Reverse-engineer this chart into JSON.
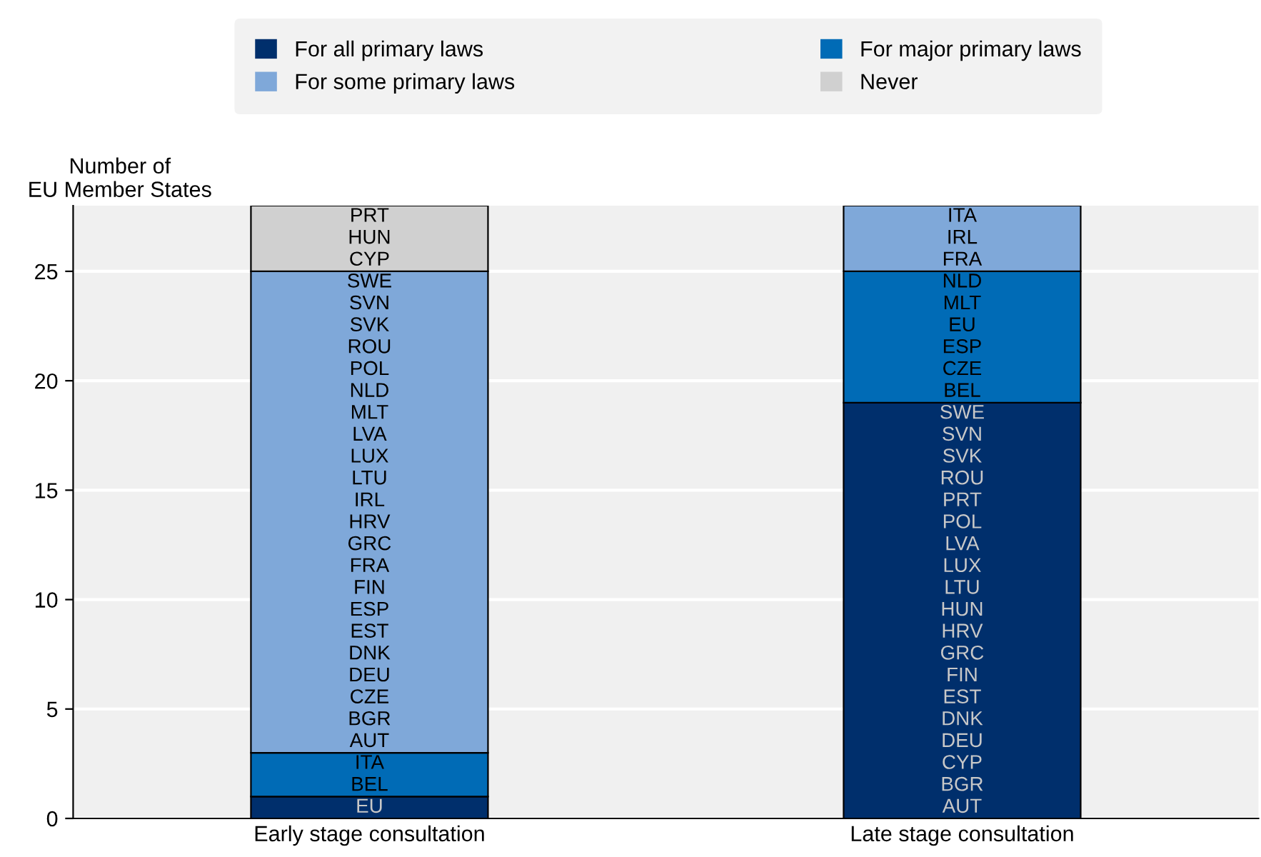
{
  "chart_data": {
    "type": "bar",
    "stacked": true,
    "ylabel": "Number of\nEU Member States",
    "categories": [
      "Early stage consultation",
      "Late stage consultation"
    ],
    "series": [
      {
        "name": "For all primary laws",
        "color": "#002f6c",
        "values": [
          1,
          19
        ]
      },
      {
        "name": "For major primary laws",
        "color": "#006bb6",
        "values": [
          2,
          6
        ]
      },
      {
        "name": "For some primary laws",
        "color": "#7fa8d9",
        "values": [
          22,
          3
        ]
      },
      {
        "name": "Never",
        "color": "#d0d0d0",
        "values": [
          3,
          0
        ]
      }
    ],
    "ylim": [
      0,
      28
    ],
    "yticks": [
      0,
      5,
      10,
      15,
      20,
      25
    ],
    "grid": "y",
    "legend": "top",
    "annotations": [
      "EU",
      "BEL",
      "ITA",
      "AUT",
      "BGR",
      "CZE",
      "DEU",
      "DNK",
      "EST",
      "ESP",
      "FIN",
      "FRA",
      "GRC",
      "HRV",
      "IRL",
      "LTU",
      "LUX",
      "LVA",
      "MLT",
      "NLD",
      "POL",
      "ROU",
      "SVK",
      "SVN",
      "SWE",
      "CYP",
      "HUN",
      "PRT",
      "AUT",
      "BGR",
      "CYP",
      "DEU",
      "DNK",
      "EST",
      "FIN",
      "GRC",
      "HRV",
      "HUN",
      "LTU",
      "LUX",
      "LVA",
      "POL",
      "PRT",
      "ROU",
      "SVK",
      "SVN",
      "SWE",
      "BEL",
      "CZE",
      "ESP",
      "EU",
      "MLT",
      "NLD",
      "FRA",
      "IRL",
      "ITA"
    ]
  }
}
